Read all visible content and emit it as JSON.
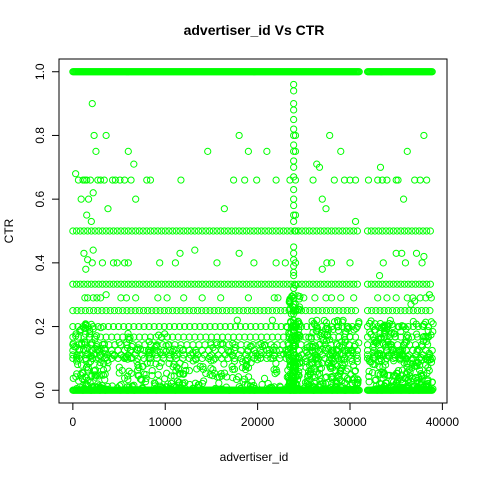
{
  "chart_data": {
    "type": "scatter",
    "title": "advertiser_id Vs CTR",
    "xlabel": "advertiser_id",
    "ylabel": "CTR",
    "xlim": [
      -1500,
      40500
    ],
    "ylim": [
      -0.04,
      1.04
    ],
    "x_ticks": [
      0,
      10000,
      20000,
      30000,
      40000
    ],
    "x_tick_labels": [
      "0",
      "10000",
      "20000",
      "30000",
      "40000"
    ],
    "y_ticks": [
      0.0,
      0.2,
      0.4,
      0.6,
      0.8,
      1.0
    ],
    "y_tick_labels": [
      "0.0",
      "0.2",
      "0.4",
      "0.6",
      "0.8",
      "1.0"
    ],
    "grid": false,
    "legend": "none",
    "marker": "open-circle",
    "point_color": "#00ff00",
    "series": [
      {
        "values_note_free": true,
        "points": [
          [
            300,
            0.68
          ],
          [
            600,
            0.66
          ],
          [
            900,
            0.6
          ],
          [
            1100,
            0.66
          ],
          [
            1300,
            0.66
          ],
          [
            1500,
            0.66
          ],
          [
            1700,
            0.6
          ],
          [
            1900,
            0.66
          ],
          [
            2100,
            0.9
          ],
          [
            2300,
            0.8
          ],
          [
            2500,
            0.75
          ],
          [
            2700,
            0.66
          ],
          [
            3000,
            0.66
          ],
          [
            3400,
            0.66
          ],
          [
            3600,
            0.8
          ],
          [
            3800,
            0.57
          ],
          [
            4300,
            0.66
          ],
          [
            4600,
            0.66
          ],
          [
            5100,
            0.66
          ],
          [
            5600,
            0.66
          ],
          [
            6000,
            0.75
          ],
          [
            6300,
            0.66
          ],
          [
            6600,
            0.71
          ],
          [
            6800,
            0.6
          ],
          [
            2000,
            0.53
          ],
          [
            1500,
            0.55
          ],
          [
            2200,
            0.62
          ],
          [
            8000,
            0.66
          ],
          [
            8400,
            0.66
          ],
          [
            11700,
            0.66
          ],
          [
            14600,
            0.75
          ],
          [
            16400,
            0.57
          ],
          [
            17400,
            0.66
          ],
          [
            18000,
            0.8
          ],
          [
            19000,
            0.75
          ],
          [
            21000,
            0.75
          ],
          [
            22000,
            0.66
          ],
          [
            18600,
            0.66
          ],
          [
            19900,
            0.66
          ],
          [
            23500,
            0.66
          ],
          [
            26000,
            0.66
          ],
          [
            26400,
            0.71
          ],
          [
            26700,
            0.7
          ],
          [
            27000,
            0.6
          ],
          [
            27400,
            0.57
          ],
          [
            27800,
            0.8
          ],
          [
            28300,
            0.66
          ],
          [
            29000,
            0.75
          ],
          [
            29400,
            0.66
          ],
          [
            30000,
            0.66
          ],
          [
            30600,
            0.66
          ],
          [
            30600,
            0.53
          ],
          [
            32000,
            0.66
          ],
          [
            33000,
            0.66
          ],
          [
            33500,
            0.66
          ],
          [
            33300,
            0.7
          ],
          [
            34000,
            0.66
          ],
          [
            35000,
            0.66
          ],
          [
            35200,
            0.66
          ],
          [
            35800,
            0.6
          ],
          [
            36200,
            0.75
          ],
          [
            37000,
            0.66
          ],
          [
            37600,
            0.66
          ],
          [
            38000,
            0.8
          ],
          [
            38300,
            0.66
          ],
          [
            23900,
            0.96
          ],
          [
            23900,
            0.94
          ],
          [
            23900,
            0.9
          ],
          [
            23900,
            0.88
          ],
          [
            23900,
            0.85
          ],
          [
            23900,
            0.82
          ],
          [
            23900,
            0.8
          ],
          [
            23900,
            0.77
          ],
          [
            23900,
            0.75
          ],
          [
            23900,
            0.72
          ],
          [
            23900,
            0.7
          ],
          [
            23900,
            0.67
          ],
          [
            23900,
            0.63
          ],
          [
            23900,
            0.6
          ],
          [
            23900,
            0.58
          ],
          [
            23900,
            0.55
          ],
          [
            23900,
            0.53
          ],
          [
            23900,
            0.45
          ],
          [
            23900,
            0.43
          ],
          [
            23900,
            0.41
          ],
          [
            23900,
            0.39
          ],
          [
            23900,
            0.37
          ],
          [
            23900,
            0.36
          ],
          [
            23900,
            0.32
          ],
          [
            23900,
            0.3
          ],
          [
            23900,
            0.29
          ],
          [
            23900,
            0.27
          ],
          [
            23900,
            0.24
          ],
          [
            23900,
            0.22
          ],
          [
            23900,
            0.21
          ],
          [
            23900,
            0.19
          ],
          [
            23900,
            0.18
          ],
          [
            23900,
            0.16
          ],
          [
            23900,
            0.15
          ],
          [
            23900,
            0.14
          ],
          [
            23900,
            0.13
          ],
          [
            23900,
            0.12
          ],
          [
            23900,
            0.11
          ],
          [
            23900,
            0.1
          ],
          [
            23900,
            0.09
          ],
          [
            23900,
            0.08
          ],
          [
            23900,
            0.07
          ],
          [
            23900,
            0.06
          ],
          [
            23900,
            0.05
          ],
          [
            23900,
            0.04
          ],
          [
            23900,
            0.03
          ],
          [
            23900,
            0.02
          ],
          [
            23900,
            0.01
          ],
          [
            24100,
            0.8
          ],
          [
            24100,
            0.75
          ],
          [
            24100,
            0.66
          ],
          [
            24100,
            0.55
          ],
          [
            24100,
            0.5
          ],
          [
            24100,
            0.4
          ],
          [
            24100,
            0.33
          ],
          [
            24100,
            0.25
          ],
          [
            24100,
            0.2
          ],
          [
            24100,
            0.17
          ],
          [
            24100,
            0.14
          ],
          [
            24100,
            0.1
          ],
          [
            24100,
            0.08
          ],
          [
            24100,
            0.06
          ],
          [
            24100,
            0.04
          ],
          [
            24100,
            0.02
          ],
          [
            1200,
            0.43
          ],
          [
            1600,
            0.41
          ],
          [
            2100,
            0.4
          ],
          [
            2200,
            0.44
          ],
          [
            1400,
            0.38
          ],
          [
            3200,
            0.4
          ],
          [
            4400,
            0.4
          ],
          [
            4800,
            0.4
          ],
          [
            5600,
            0.4
          ],
          [
            6000,
            0.4
          ],
          [
            9400,
            0.4
          ],
          [
            11100,
            0.4
          ],
          [
            11600,
            0.43
          ],
          [
            13200,
            0.44
          ],
          [
            15600,
            0.4
          ],
          [
            18000,
            0.43
          ],
          [
            19600,
            0.4
          ],
          [
            22000,
            0.4
          ],
          [
            23000,
            0.4
          ],
          [
            27500,
            0.4
          ],
          [
            28000,
            0.4
          ],
          [
            30000,
            0.4
          ],
          [
            27000,
            0.38
          ],
          [
            33200,
            0.36
          ],
          [
            33600,
            0.4
          ],
          [
            35000,
            0.43
          ],
          [
            35600,
            0.43
          ],
          [
            36000,
            0.4
          ],
          [
            37200,
            0.43
          ],
          [
            37800,
            0.4
          ],
          [
            38000,
            0.42
          ],
          [
            1300,
            0.29
          ],
          [
            1600,
            0.29
          ],
          [
            2200,
            0.29
          ],
          [
            2600,
            0.29
          ],
          [
            3000,
            0.29
          ],
          [
            5200,
            0.29
          ],
          [
            5800,
            0.29
          ],
          [
            6800,
            0.29
          ],
          [
            9200,
            0.29
          ],
          [
            10200,
            0.29
          ],
          [
            12000,
            0.29
          ],
          [
            14000,
            0.29
          ],
          [
            16000,
            0.29
          ],
          [
            19000,
            0.29
          ],
          [
            21800,
            0.29
          ],
          [
            22200,
            0.29
          ],
          [
            25000,
            0.29
          ],
          [
            26200,
            0.29
          ],
          [
            27400,
            0.29
          ],
          [
            28000,
            0.29
          ],
          [
            29000,
            0.29
          ],
          [
            30400,
            0.29
          ],
          [
            33000,
            0.29
          ],
          [
            34000,
            0.29
          ],
          [
            35000,
            0.29
          ],
          [
            36200,
            0.29
          ],
          [
            36800,
            0.29
          ],
          [
            37600,
            0.29
          ],
          [
            38200,
            0.29
          ],
          [
            38800,
            0.29
          ],
          [
            3600,
            0.3
          ],
          [
            21600,
            0.22
          ],
          [
            17800,
            0.22
          ],
          [
            36600,
            0.27
          ],
          [
            37000,
            0.28
          ],
          [
            38600,
            0.3
          ]
        ]
      }
    ],
    "bands": [
      {
        "y": 1.0,
        "x_ranges": [
          [
            0,
            31000
          ],
          [
            31900,
            38900
          ]
        ],
        "step": 100
      },
      {
        "y": 0.0,
        "x_ranges": [
          [
            0,
            31000
          ],
          [
            31900,
            38900
          ]
        ],
        "step": 100
      },
      {
        "y": 0.5,
        "x_ranges": [
          [
            0,
            31000
          ],
          [
            31900,
            38900
          ]
        ],
        "step": 400
      },
      {
        "y": 0.333,
        "x_ranges": [
          [
            0,
            31000
          ],
          [
            31900,
            38900
          ]
        ],
        "step": 400
      },
      {
        "y": 0.25,
        "x_ranges": [
          [
            0,
            31000
          ],
          [
            31900,
            38900
          ]
        ],
        "step": 450
      },
      {
        "y": 0.2,
        "x_ranges": [
          [
            0,
            31000
          ],
          [
            31900,
            38900
          ]
        ],
        "step": 550
      },
      {
        "y": 0.167,
        "x_ranges": [
          [
            0,
            31000
          ],
          [
            31900,
            38900
          ]
        ],
        "step": 600
      },
      {
        "y": 0.143,
        "x_ranges": [
          [
            0,
            31000
          ],
          [
            31900,
            38900
          ]
        ],
        "step": 650
      },
      {
        "y": 0.125,
        "x_ranges": [
          [
            0,
            31000
          ],
          [
            31900,
            38900
          ]
        ],
        "step": 700
      },
      {
        "y": 0.111,
        "x_ranges": [
          [
            0,
            31000
          ],
          [
            31900,
            38900
          ]
        ],
        "step": 750
      },
      {
        "y": 0.1,
        "x_ranges": [
          [
            0,
            31000
          ],
          [
            31900,
            38900
          ]
        ],
        "step": 700
      }
    ],
    "dense_clusters": [
      {
        "x_range": [
          0,
          3500
        ],
        "y_range": [
          0.0,
          0.22
        ],
        "count": 120
      },
      {
        "x_range": [
          3500,
          12000
        ],
        "y_range": [
          0.0,
          0.18
        ],
        "count": 150
      },
      {
        "x_range": [
          12000,
          23000
        ],
        "y_range": [
          0.0,
          0.15
        ],
        "count": 120
      },
      {
        "x_range": [
          23200,
          24600
        ],
        "y_range": [
          0.0,
          0.3
        ],
        "count": 140
      },
      {
        "x_range": [
          25000,
          31000
        ],
        "y_range": [
          0.0,
          0.22
        ],
        "count": 220
      },
      {
        "x_range": [
          32000,
          39000
        ],
        "y_range": [
          0.0,
          0.22
        ],
        "count": 260
      }
    ]
  }
}
